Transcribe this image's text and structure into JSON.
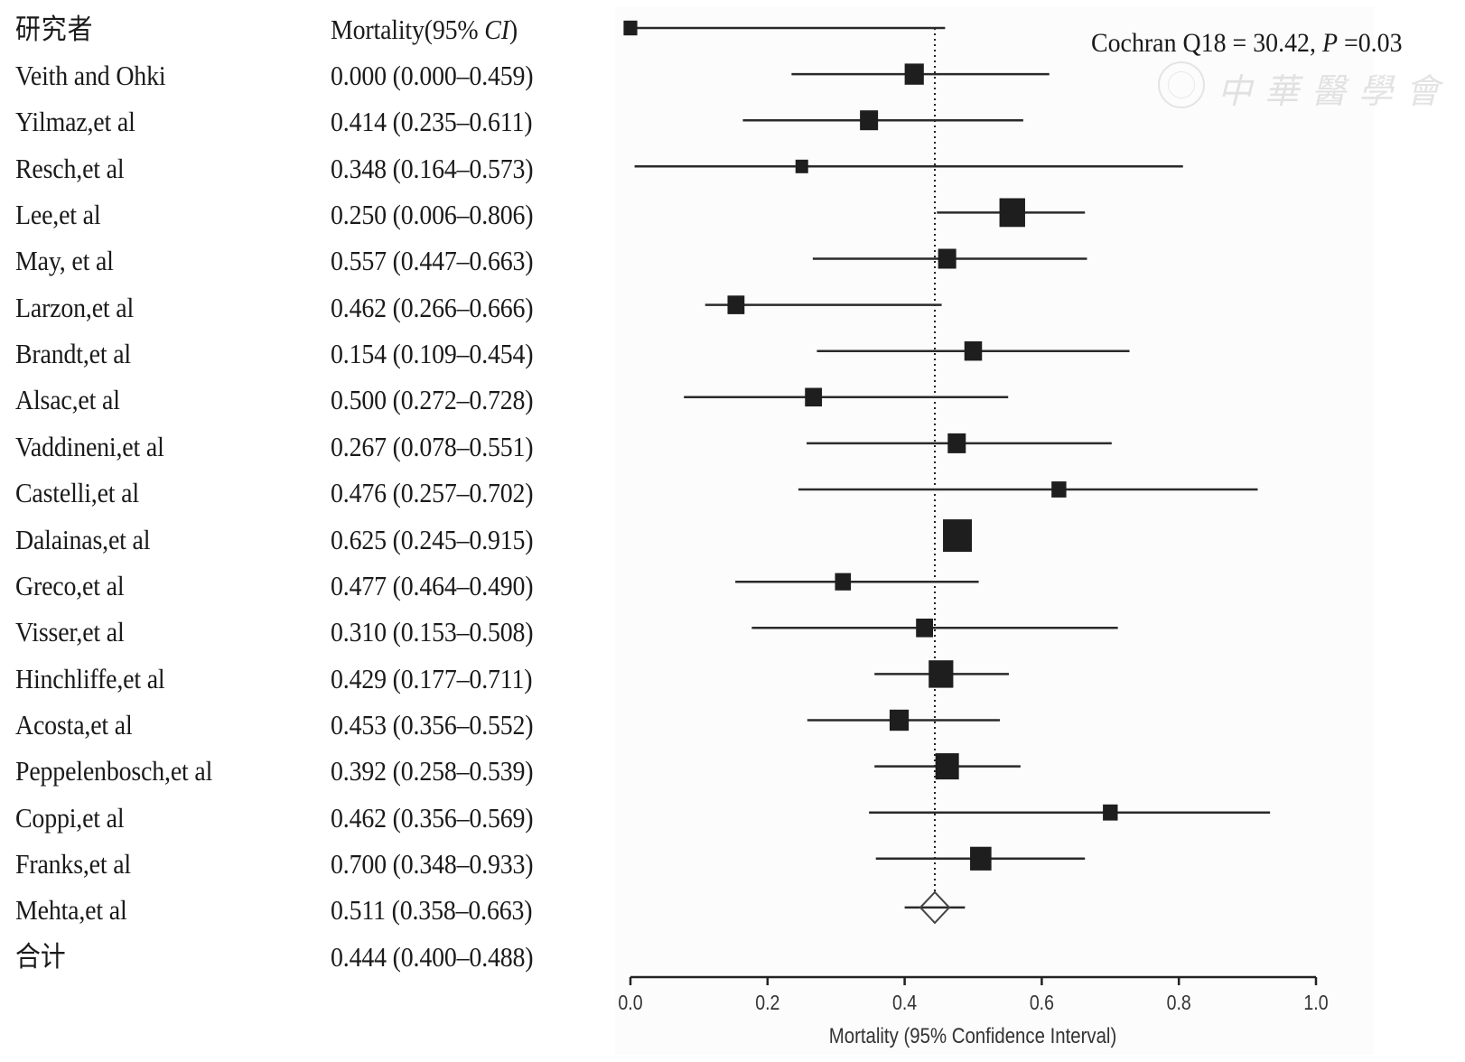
{
  "header": {
    "study_col": "研究者",
    "mortality_col_prefix": "Mortality(95% ",
    "mortality_col_italic": "CI",
    "mortality_col_suffix": ")"
  },
  "stats": {
    "prefix": "Cochran Q18 = 30.42, ",
    "p_label": "P",
    "p_value": " =0.03"
  },
  "watermark": {
    "text": "中華醫學會",
    "seal": "seal-icon"
  },
  "rows": [
    {
      "study": "Veith and Ohki",
      "text": "0.000 (0.000–0.459)"
    },
    {
      "study": "Yilmaz,et al",
      "text": "0.414 (0.235–0.611)"
    },
    {
      "study": "Resch,et al",
      "text": "0.348 (0.164–0.573)"
    },
    {
      "study": "Lee,et al",
      "text": "0.250 (0.006–0.806)"
    },
    {
      "study": "May, et al",
      "text": "0.557 (0.447–0.663)"
    },
    {
      "study": "Larzon,et al",
      "text": "0.462 (0.266–0.666)"
    },
    {
      "study": "Brandt,et al",
      "text": "0.154 (0.109–0.454)"
    },
    {
      "study": "Alsac,et al",
      "text": "0.500 (0.272–0.728)"
    },
    {
      "study": "Vaddineni,et al",
      "text": "0.267 (0.078–0.551)"
    },
    {
      "study": "Castelli,et al",
      "text": "0.476 (0.257–0.702)"
    },
    {
      "study": "Dalainas,et al",
      "text": "0.625 (0.245–0.915)"
    },
    {
      "study": "Greco,et al",
      "text": "0.477 (0.464–0.490)"
    },
    {
      "study": "Visser,et al",
      "text": "0.310 (0.153–0.508)"
    },
    {
      "study": "Hinchliffe,et al",
      "text": "0.429 (0.177–0.711)"
    },
    {
      "study": "Acosta,et al",
      "text": "0.453 (0.356–0.552)"
    },
    {
      "study": "Peppelenbosch,et al",
      "text": "0.392 (0.258–0.539)"
    },
    {
      "study": "Coppi,et al",
      "text": "0.462 (0.356–0.569)"
    },
    {
      "study": "Franks,et al",
      "text": "0.700 (0.348–0.933)"
    },
    {
      "study": "Mehta,et al",
      "text": "0.511 (0.358–0.663)"
    }
  ],
  "total": {
    "study": "合计",
    "text": "0.444 (0.400–0.488)"
  },
  "chart_data": {
    "type": "forest",
    "title": "",
    "xlabel": "Mortality (95% Confidence Interval)",
    "ylabel": "",
    "xlim": [
      0.0,
      1.0
    ],
    "xticks": [
      0.0,
      0.2,
      0.4,
      0.6,
      0.8,
      1.0
    ],
    "xtick_labels": [
      "0.0",
      "0.2",
      "0.4",
      "0.6",
      "0.8",
      "1.0"
    ],
    "grid": false,
    "reference_line": 0.444,
    "plotted_estimates": [
      {
        "est": 0.0,
        "lo": 0.0,
        "hi": 0.459,
        "weight": 0.3
      },
      {
        "est": 0.414,
        "lo": 0.235,
        "hi": 0.611,
        "weight": 0.55
      },
      {
        "est": 0.348,
        "lo": 0.164,
        "hi": 0.573,
        "weight": 0.5
      },
      {
        "est": 0.25,
        "lo": 0.006,
        "hi": 0.806,
        "weight": 0.25
      },
      {
        "est": 0.557,
        "lo": 0.447,
        "hi": 0.663,
        "weight": 0.85
      },
      {
        "est": 0.462,
        "lo": 0.266,
        "hi": 0.666,
        "weight": 0.5
      },
      {
        "est": 0.154,
        "lo": 0.109,
        "hi": 0.454,
        "weight": 0.45
      },
      {
        "est": 0.5,
        "lo": 0.272,
        "hi": 0.728,
        "weight": 0.48
      },
      {
        "est": 0.267,
        "lo": 0.078,
        "hi": 0.551,
        "weight": 0.45
      },
      {
        "est": 0.476,
        "lo": 0.257,
        "hi": 0.702,
        "weight": 0.5
      },
      {
        "est": 0.625,
        "lo": 0.245,
        "hi": 0.915,
        "weight": 0.35
      },
      {
        "est": 0.477,
        "lo": 0.464,
        "hi": 0.49,
        "weight": 1.0
      },
      {
        "est": 0.31,
        "lo": 0.153,
        "hi": 0.508,
        "weight": 0.4
      },
      {
        "est": 0.429,
        "lo": 0.177,
        "hi": 0.711,
        "weight": 0.45
      },
      {
        "est": 0.453,
        "lo": 0.356,
        "hi": 0.552,
        "weight": 0.8
      },
      {
        "est": 0.392,
        "lo": 0.258,
        "hi": 0.539,
        "weight": 0.55
      },
      {
        "est": 0.462,
        "lo": 0.356,
        "hi": 0.569,
        "weight": 0.75
      },
      {
        "est": 0.7,
        "lo": 0.348,
        "hi": 0.933,
        "weight": 0.35
      },
      {
        "est": 0.511,
        "lo": 0.358,
        "hi": 0.663,
        "weight": 0.65
      }
    ],
    "summary": {
      "est": 0.444,
      "lo": 0.4,
      "hi": 0.488,
      "marker": "diamond"
    },
    "annotation": "Cochran Q18 = 30.42, P =0.03"
  }
}
